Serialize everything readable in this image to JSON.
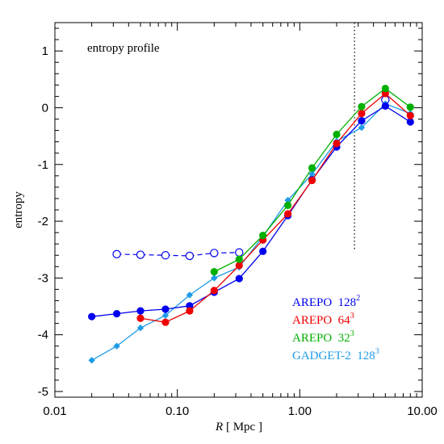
{
  "chart_data": {
    "type": "line",
    "title": "entropy profile",
    "xlabel": {
      "italic": "R",
      "text": " [ Mpc ]"
    },
    "ylabel": "entropy",
    "xscale": "log",
    "xlim": [
      0.01,
      10.0
    ],
    "ylim": [
      -5.1,
      1.5
    ],
    "x_ticks": [
      0.01,
      0.1,
      1.0,
      10.0
    ],
    "x_tick_labels": [
      "0.01",
      "0.10",
      "1.00",
      "10.00"
    ],
    "y_ticks": [
      -5,
      -4,
      -3,
      -2,
      -1,
      0,
      1
    ],
    "y_tick_labels": [
      "-5",
      "-4",
      "-3",
      "-2",
      "-1",
      "0",
      "1"
    ],
    "vline": {
      "x": 2.8,
      "y_range": [
        -2.5,
        1.5
      ],
      "style": "dotted"
    },
    "legend_position": "bottom-right",
    "series": [
      {
        "name": "AREPO  128",
        "sup": "2",
        "color": "#0000ee",
        "marker": "circle",
        "x": [
          0.02,
          0.032,
          0.05,
          0.08,
          0.126,
          0.2,
          0.32,
          0.5,
          0.8,
          1.26,
          2.0,
          3.2,
          5.0,
          8.0
        ],
        "y": [
          -3.68,
          -3.63,
          -3.58,
          -3.55,
          -3.49,
          -3.25,
          -3.01,
          -2.53,
          -1.9,
          -1.27,
          -0.69,
          -0.23,
          0.03,
          -0.25
        ]
      },
      {
        "name": "AREPO  64",
        "sup": "3",
        "color": "#ee0000",
        "marker": "circle",
        "x": [
          0.05,
          0.08,
          0.126,
          0.2,
          0.32,
          0.5,
          0.8,
          1.26,
          2.0,
          3.2,
          5.0,
          8.0
        ],
        "y": [
          -3.71,
          -3.78,
          -3.58,
          -3.22,
          -2.78,
          -2.33,
          -1.87,
          -1.28,
          -0.63,
          -0.1,
          0.25,
          -0.14
        ]
      },
      {
        "name": "AREPO  32",
        "sup": "3",
        "color": "#00b000",
        "marker": "circle",
        "x": [
          0.2,
          0.32,
          0.5,
          0.8,
          1.26,
          2.0,
          3.2,
          5.0,
          8.0
        ],
        "y": [
          -2.89,
          -2.67,
          -2.25,
          -1.72,
          -1.06,
          -0.47,
          0.02,
          0.34,
          0.01
        ]
      },
      {
        "name": "GADGET-2  128",
        "sup": "3",
        "color": "#1e9be8",
        "marker": "diamond",
        "x": [
          0.02,
          0.032,
          0.05,
          0.08,
          0.126,
          0.2,
          0.32,
          0.5,
          0.8,
          1.26,
          2.0,
          3.2,
          5.0,
          8.0
        ],
        "y": [
          -4.45,
          -4.2,
          -3.88,
          -3.66,
          -3.3,
          -3.0,
          -2.81,
          -2.27,
          -1.63,
          -1.17,
          -0.59,
          -0.35,
          0.07,
          -0.1
        ]
      },
      {
        "color": "#0000ee",
        "marker": "open-circle",
        "dashed": true,
        "x": [
          0.032,
          0.05,
          0.08,
          0.126,
          0.2,
          0.32,
          5.0
        ],
        "y": [
          -2.58,
          -2.59,
          -2.6,
          -2.61,
          -2.56,
          -2.55,
          0.14
        ]
      }
    ]
  }
}
